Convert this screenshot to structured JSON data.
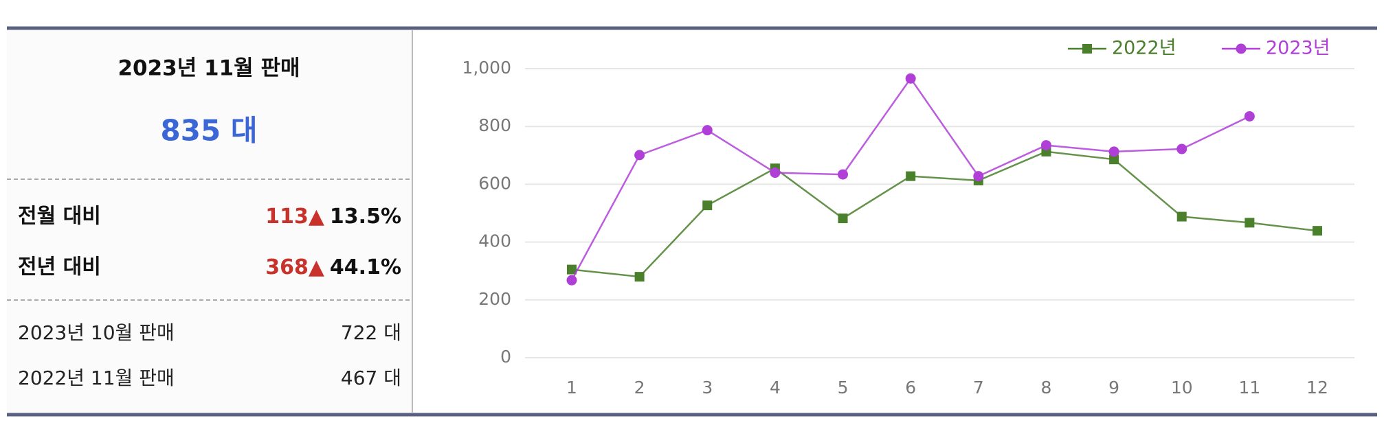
{
  "summary": {
    "title": "2023년 11월 판매",
    "total": "835 대",
    "comparisons": [
      {
        "label": "전월 대비",
        "diff": "113",
        "arrow": "▲",
        "pct": "13.5%"
      },
      {
        "label": "전년 대비",
        "diff": "368",
        "arrow": "▲",
        "pct": "44.1%"
      }
    ],
    "references": [
      {
        "label": "2023년 10월 판매",
        "value": "722 대"
      },
      {
        "label": "2022년 11월 판매",
        "value": "467 대"
      }
    ]
  },
  "chart_data": {
    "type": "line",
    "categories": [
      "1",
      "2",
      "3",
      "4",
      "5",
      "6",
      "7",
      "8",
      "9",
      "10",
      "11",
      "12"
    ],
    "series": [
      {
        "name": "2022년",
        "color": "#4a7f2c",
        "marker": "square",
        "values": [
          305,
          280,
          527,
          655,
          482,
          628,
          613,
          713,
          686,
          488,
          467,
          439
        ]
      },
      {
        "name": "2023년",
        "color": "#b03fd8",
        "marker": "circle",
        "values": [
          268,
          701,
          787,
          640,
          634,
          966,
          628,
          735,
          713,
          722,
          835,
          null
        ]
      }
    ],
    "ylim": [
      0,
      1000
    ],
    "yticks": [
      0,
      200,
      400,
      600,
      800,
      {
        "value": 1000,
        "label": "1,000"
      }
    ],
    "grid": true,
    "legend": "top-right"
  }
}
